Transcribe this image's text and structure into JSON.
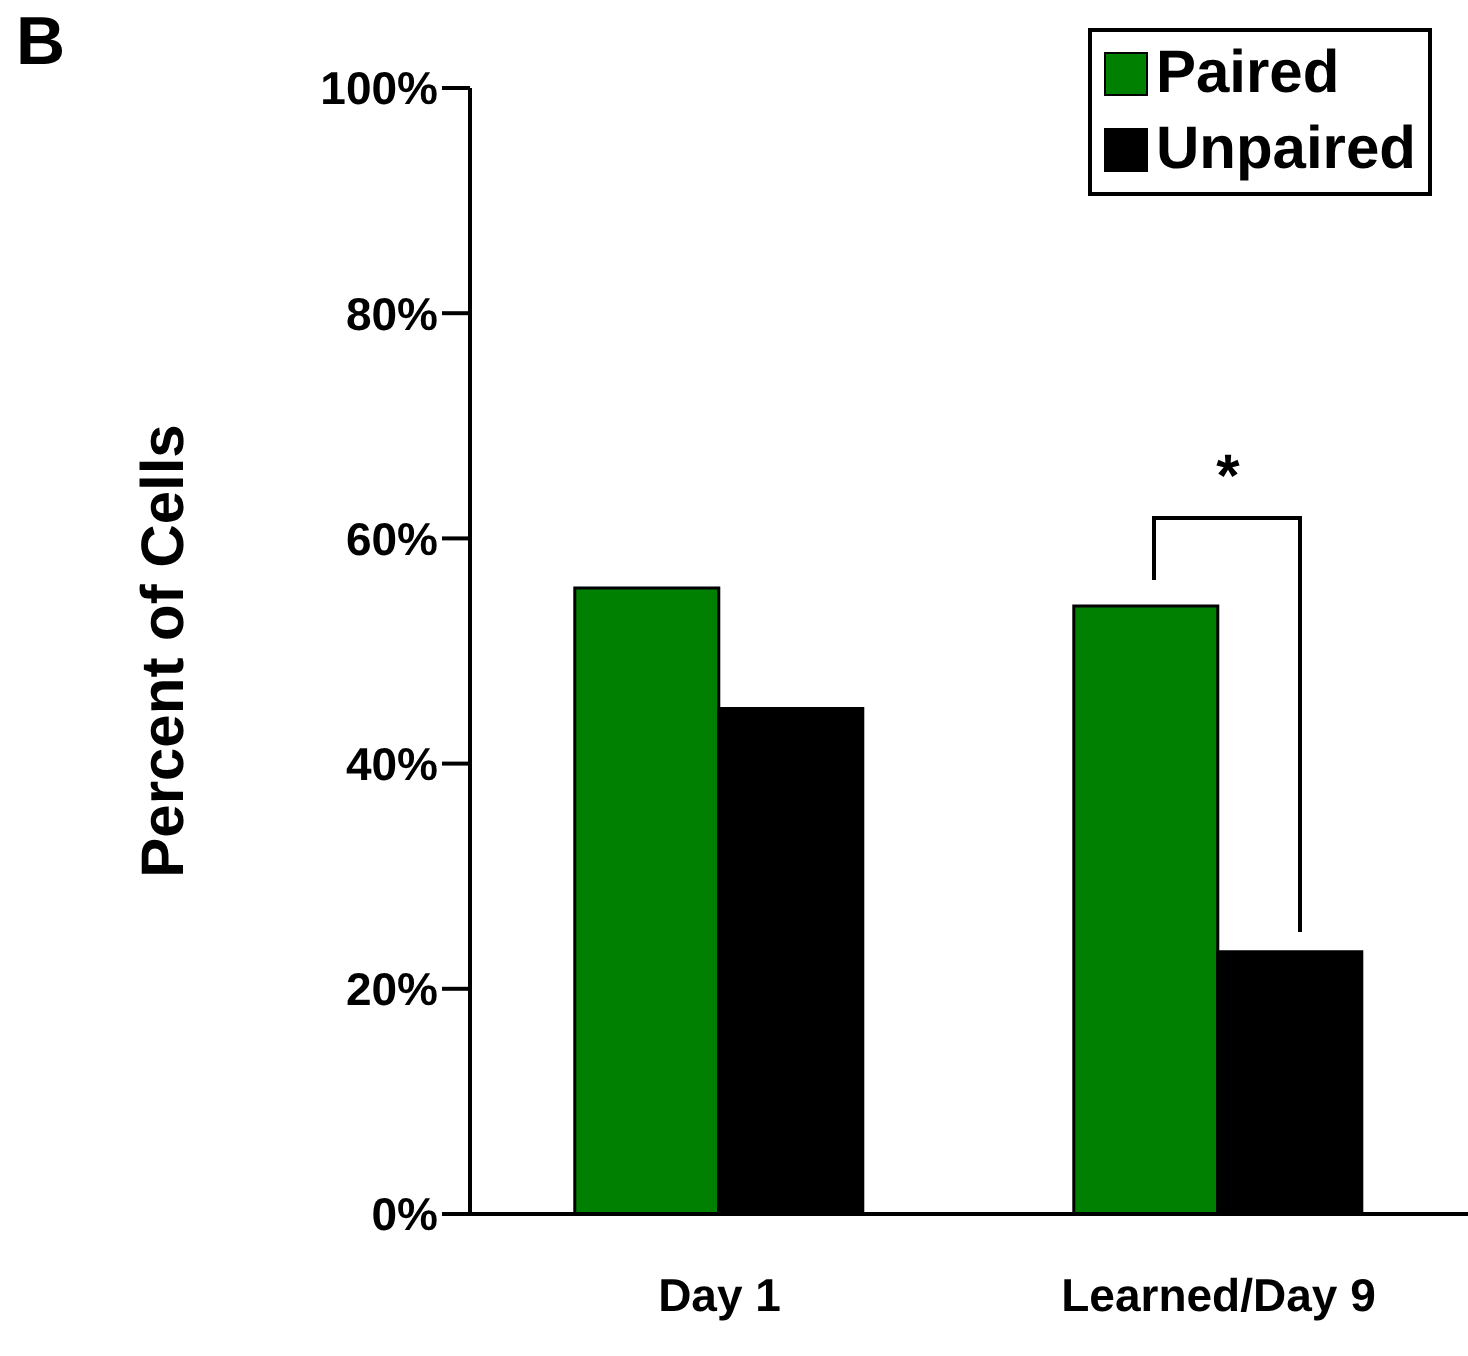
{
  "chart_data": {
    "type": "bar",
    "title": "B",
    "ylabel": "Percent of Cells",
    "categories": [
      "Day 1",
      "Learned/Day 9"
    ],
    "series": [
      {
        "name": "Paired",
        "color": "#008000",
        "values": [
          55.6,
          54.0
        ]
      },
      {
        "name": "Unpaired",
        "color": "#000000",
        "values": [
          44.9,
          23.3
        ]
      }
    ],
    "ylim": [
      0,
      100
    ],
    "yticks": [
      {
        "value": 0,
        "label": "0%"
      },
      {
        "value": 20,
        "label": "20%"
      },
      {
        "value": 40,
        "label": "40%"
      },
      {
        "value": 60,
        "label": "60%"
      },
      {
        "value": 80,
        "label": "80%"
      },
      {
        "value": 100,
        "label": "100%"
      }
    ],
    "grid": false,
    "legend": "top right",
    "annotations": [
      "*"
    ]
  }
}
